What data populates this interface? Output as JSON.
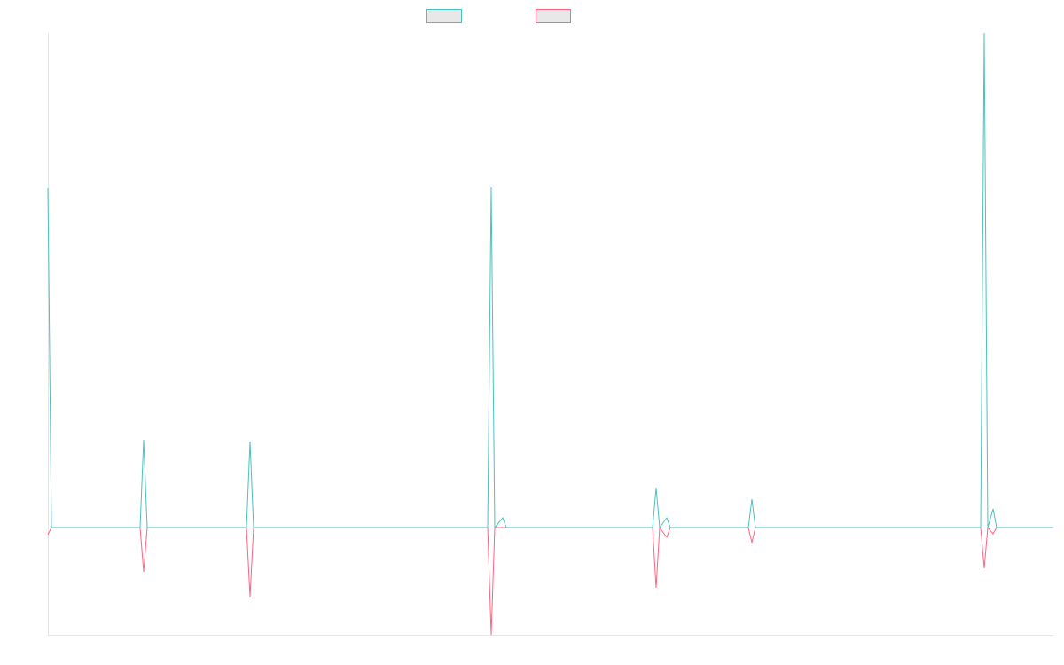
{
  "chart_data": {
    "type": "line",
    "x": [
      0,
      4,
      104,
      108,
      112,
      224,
      228,
      232,
      496,
      500,
      504,
      513,
      517,
      682,
      686,
      690,
      698,
      702,
      790,
      794,
      798,
      1052,
      1056,
      1060,
      1066,
      1070,
      1134
    ],
    "series": [
      {
        "color": "#ff6384",
        "values": [
          -8,
          0,
          0,
          -50,
          0,
          0,
          -78,
          0,
          0,
          -121,
          0,
          0,
          0,
          0,
          -68,
          0,
          -11,
          0,
          0,
          -17,
          0,
          0,
          -46,
          0,
          -7,
          0,
          0
        ]
      },
      {
        "color": "#4bc0c0",
        "values": [
          383,
          0,
          0,
          99,
          0,
          0,
          97,
          0,
          0,
          384,
          0,
          11,
          0,
          0,
          45,
          0,
          11,
          0,
          0,
          32,
          0,
          0,
          558,
          0,
          21,
          0,
          0
        ]
      }
    ],
    "legend_order": [
      1,
      0
    ],
    "xlim": [
      0,
      1134
    ],
    "ylim": [
      -121,
      558
    ]
  }
}
